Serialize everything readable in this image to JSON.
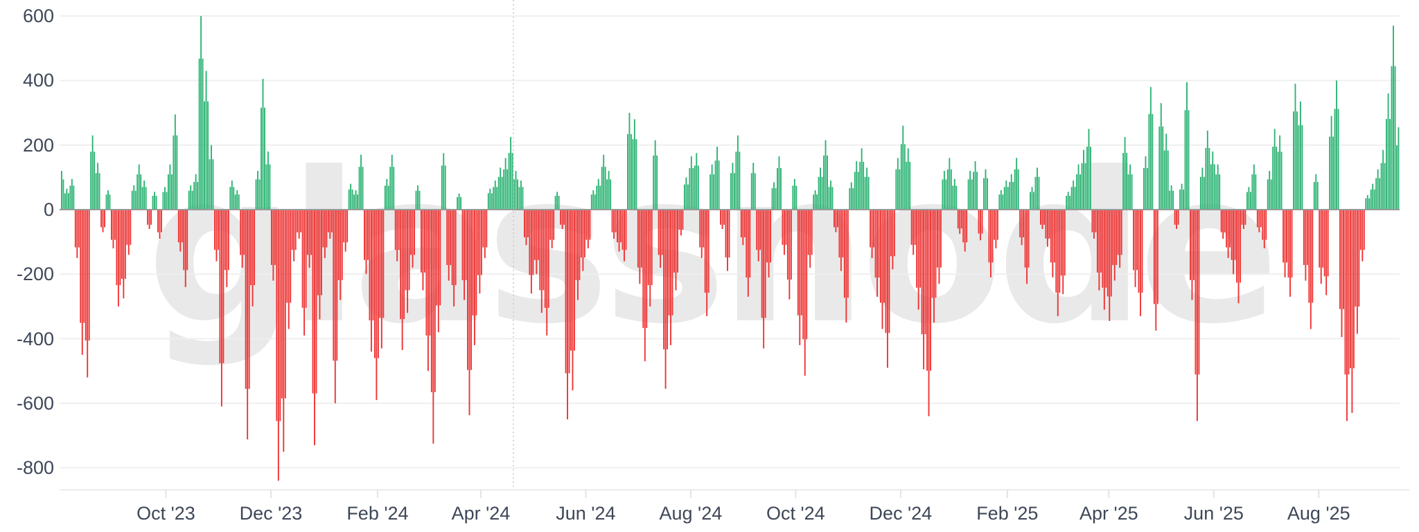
{
  "watermark_text": "glassnode",
  "chart_data": {
    "type": "bar",
    "x_start_date": "2023-08-01",
    "x_step_days": 3,
    "values": [
      120,
      65,
      95,
      -150,
      -450,
      -520,
      230,
      145,
      -70,
      60,
      -120,
      -300,
      -275,
      -140,
      75,
      140,
      90,
      -60,
      55,
      -90,
      70,
      140,
      295,
      -130,
      -240,
      75,
      110,
      600,
      430,
      200,
      -160,
      -610,
      -240,
      90,
      60,
      -180,
      -712,
      -300,
      120,
      405,
      180,
      -220,
      -840,
      -750,
      -370,
      -160,
      -90,
      -390,
      -180,
      -730,
      -340,
      -150,
      -90,
      -600,
      -280,
      -130,
      80,
      60,
      170,
      -200,
      -440,
      -590,
      -430,
      95,
      170,
      -160,
      -435,
      -320,
      -180,
      75,
      -250,
      -500,
      -725,
      -380,
      175,
      -220,
      -300,
      50,
      -280,
      -637,
      -420,
      -260,
      -150,
      65,
      90,
      130,
      160,
      225,
      120,
      90,
      -110,
      -260,
      -200,
      -320,
      -390,
      -120,
      55,
      -60,
      -650,
      -560,
      -280,
      -190,
      -120,
      60,
      95,
      170,
      120,
      -90,
      -130,
      -160,
      300,
      280,
      -230,
      -470,
      -300,
      215,
      -180,
      -555,
      -420,
      -250,
      -80,
      100,
      165,
      175,
      -150,
      -330,
      140,
      195,
      -60,
      -190,
      145,
      230,
      -110,
      -270,
      145,
      -160,
      -430,
      -210,
      85,
      165,
      -140,
      -278,
      95,
      -420,
      -515,
      -180,
      60,
      130,
      215,
      90,
      -70,
      -190,
      -350,
      85,
      150,
      190,
      130,
      -150,
      -270,
      -370,
      -490,
      -185,
      160,
      260,
      190,
      -140,
      -310,
      -495,
      -640,
      -350,
      -230,
      120,
      160,
      95,
      -75,
      -130,
      120,
      150,
      -95,
      125,
      -210,
      -120,
      60,
      90,
      110,
      160,
      -110,
      -230,
      70,
      130,
      -60,
      -115,
      -210,
      -330,
      -262,
      55,
      90,
      140,
      185,
      250,
      -90,
      -250,
      -310,
      -345,
      -220,
      -180,
      225,
      140,
      -240,
      -330,
      165,
      380,
      -375,
      330,
      235,
      75,
      -60,
      80,
      395,
      -280,
      -655,
      130,
      245,
      180,
      140,
      -90,
      -150,
      -200,
      -290,
      -60,
      70,
      140,
      -70,
      -120,
      120,
      250,
      230,
      -210,
      -270,
      390,
      335,
      -220,
      -370,
      110,
      -230,
      -265,
      290,
      400,
      -395,
      -655,
      -630,
      -385,
      -160,
      45,
      80,
      125,
      185,
      360,
      570,
      255
    ],
    "y_ticks": [
      600,
      400,
      200,
      0,
      -200,
      -400,
      -600,
      -800
    ],
    "y_tick_labels": [
      "600",
      "400",
      "200",
      "0",
      "-200",
      "-400",
      "-600",
      "-800"
    ],
    "x_tick_labels": [
      "Oct '23",
      "Dec '23",
      "Feb '24",
      "Apr '24",
      "Jun '24",
      "Aug '24",
      "Oct '24",
      "Dec '24",
      "Feb '25",
      "Apr '25",
      "Jun '25",
      "Aug '25"
    ],
    "x_tick_dates": [
      "2023-10-01",
      "2023-12-01",
      "2024-02-01",
      "2024-04-01",
      "2024-06-01",
      "2024-08-01",
      "2024-10-01",
      "2024-12-01",
      "2025-02-01",
      "2025-04-01",
      "2025-06-01",
      "2025-08-01"
    ],
    "ylim": [
      -868,
      650
    ],
    "grid": true,
    "legend": "none",
    "positive_color": "#2cb373",
    "negative_color": "#ee3333",
    "annotations": {
      "vline_date": "2024-04-20",
      "vline_style": "dotted"
    }
  },
  "colors": {
    "background": "#ffffff",
    "gridline": "#efefef",
    "zero_line": "#999999",
    "axis_line": "#ececec",
    "tick_mark": "#e3e3e3",
    "label_text": "#3e4757",
    "vline": "#c9c9c9",
    "watermark": "#e9e9e9"
  }
}
